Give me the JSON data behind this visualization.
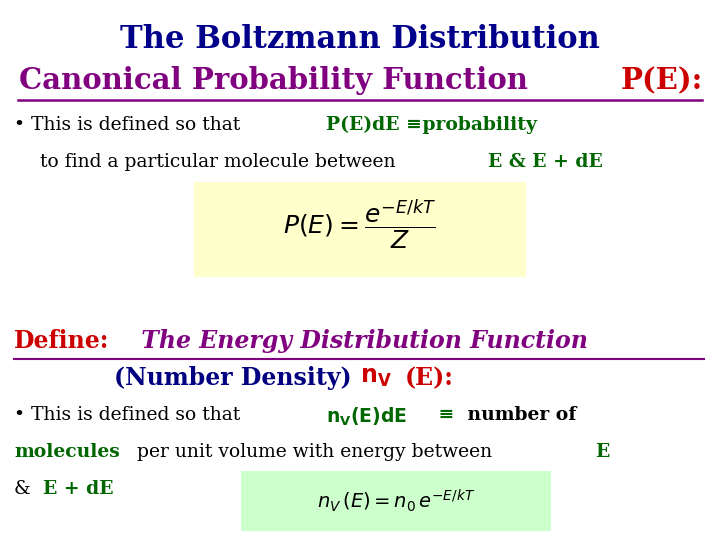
{
  "bg_color": "#ffffff",
  "title_line1": "The Boltzmann Distribution",
  "title_line1_color": "#00008B",
  "title_line2_part1": "Canonical Probability Function ",
  "title_line2_part1_color": "#800080",
  "title_line2_part2": "P(E):",
  "title_line2_part2_color": "#cc0000",
  "formula1_bg": "#ffffcc",
  "define_prefix_color": "#cc0000",
  "define_italic_color": "#800080",
  "number_density_part1_color": "#000080",
  "number_density_color": "#cc0000",
  "formula2_bg": "#ccffcc",
  "green_color": "#006600",
  "black_color": "#000000",
  "dark_blue": "#00008B",
  "dark_navy": "#000080"
}
